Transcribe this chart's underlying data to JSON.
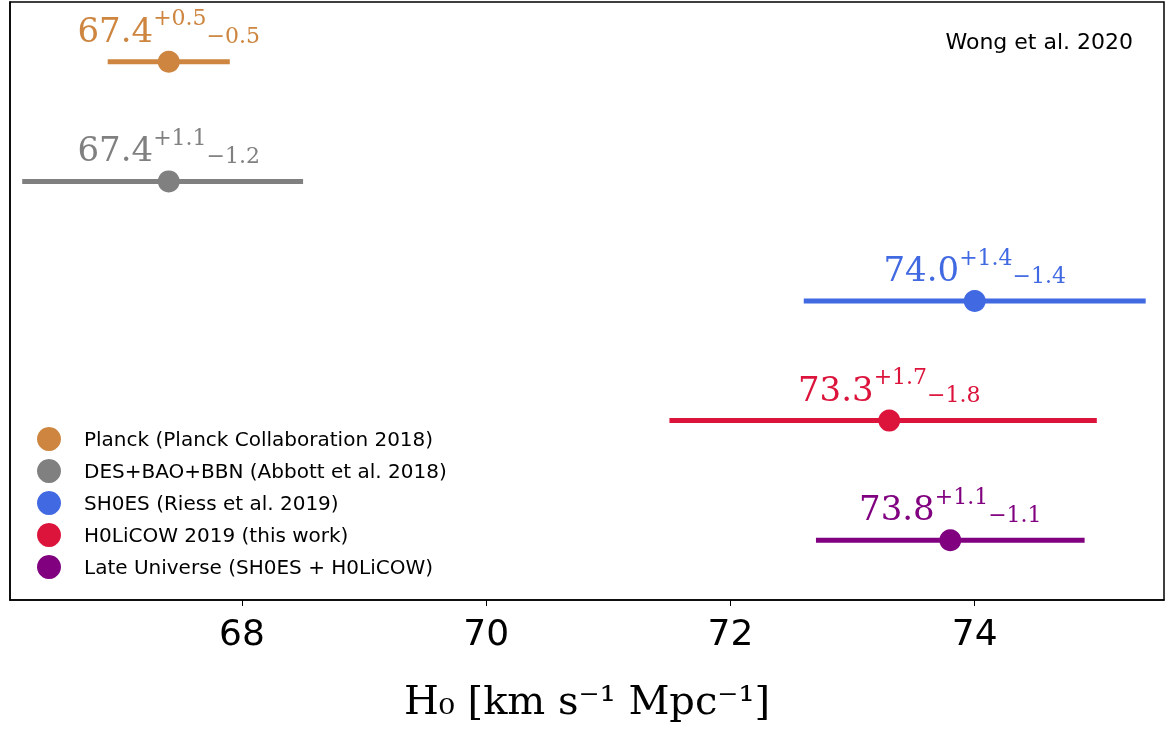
{
  "chart_data": {
    "type": "scatter",
    "orientation": "horizontal",
    "categories": [
      null,
      null,
      null,
      null,
      null
    ],
    "xlabel": "H₀ [km s⁻¹ Mpc⁻¹]",
    "xlim": [
      66.1,
      75.55
    ],
    "xticks": [
      68,
      70,
      72,
      74
    ],
    "annotations": [
      "Wong et al. 2020"
    ],
    "series": [
      {
        "name": "Planck (Planck Collaboration 2018)",
        "color": "#cd853f",
        "values": [
          67.4,
          null,
          null,
          null,
          null
        ],
        "errors": [
          0.5,
          null,
          null,
          null,
          null
        ],
        "value_labels": [
          "67.4$^{+0.5}$$_{−0.5}$",
          null,
          null,
          null,
          null
        ]
      },
      {
        "name": "DES+BAO+BBN (Abbott et al. 2018)",
        "color": "#808080",
        "values": [
          null,
          67.4,
          null,
          null,
          null
        ],
        "errors": [
          null,
          [
            66.2,
            68.5
          ],
          null,
          null,
          null
        ],
        "value_labels": [
          null,
          "67.4$^{+1.1}$$_{−1.2}$",
          null,
          null,
          null
        ]
      },
      {
        "name": "SH0ES (Riess et al. 2019)",
        "color": "#4169e1",
        "values": [
          null,
          null,
          74.0,
          null,
          null
        ],
        "errors": [
          null,
          null,
          1.4,
          null,
          null
        ],
        "value_labels": [
          null,
          null,
          "74.0$^{+1.4}$$_{−1.4}$",
          null,
          null
        ]
      },
      {
        "name": "H0LiCOW 2019 (this work)",
        "color": "#dc143c",
        "values": [
          null,
          null,
          null,
          73.3,
          null
        ],
        "errors": [
          null,
          null,
          null,
          [
            71.5,
            75.0
          ],
          null
        ],
        "value_labels": [
          null,
          null,
          null,
          "73.3$^{+1.7}$$_{−1.8}$",
          null
        ]
      },
      {
        "name": "Late Universe (SH0ES + H0LiCOW)",
        "color": "#800080",
        "values": [
          null,
          null,
          null,
          null,
          73.8
        ],
        "errors": [
          null,
          null,
          null,
          null,
          1.1
        ],
        "value_labels": [
          null,
          null,
          null,
          null,
          "73.8$^{+1.1}$$_{−1.1}$"
        ]
      }
    ],
    "marker": "circle",
    "legend": "bottom left",
    "grid": false,
    "tick_labels": "x"
  }
}
